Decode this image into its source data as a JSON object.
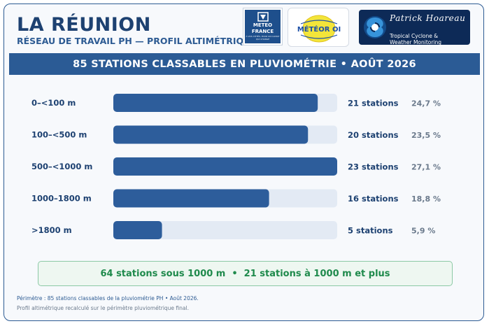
{
  "header": {
    "title": "LA RÉUNION",
    "subtitle": "RÉSEAU DE TRAVAIL PH — PROFIL ALTIMÉTRIQUE"
  },
  "logos": {
    "meteo_france": {
      "name_line1": "METEO",
      "name_line2": "FRANCE",
      "tagline": "À VOS CÔTÉS, POUR UN CLIMAT QUI CHANGE",
      "color": "#1e4f8c"
    },
    "meteor_oi": {
      "name": "MÉTÉOR OI",
      "color_yellow": "#f3e53a",
      "color_blue": "#1c4fa6"
    },
    "patrick_hoareau": {
      "name": "Patrick Hoareau",
      "tagline_line1": "Tropical Cyclone &",
      "tagline_line2": "Weather Monitoring",
      "color": "#0d2a57"
    }
  },
  "banner": {
    "text": "85 STATIONS CLASSABLES EN PLUVIOMÉTRIE • AOÛT 2026"
  },
  "chart_data": {
    "type": "bar",
    "orientation": "horizontal",
    "categories": [
      "0–<100 m",
      "100–<500 m",
      "500–<1000 m",
      "1000–1800 m",
      ">1800 m"
    ],
    "values": [
      21,
      20,
      23,
      16,
      5
    ],
    "count_labels": [
      "21 stations",
      "20 stations",
      "23 stations",
      "16 stations",
      "5 stations"
    ],
    "percent_labels": [
      "24,7 %",
      "23,5 %",
      "27,1 %",
      "18,8 %",
      "5,9 %"
    ],
    "xlim": [
      0,
      23
    ],
    "grid": false,
    "bar_color": "#2d5d9b",
    "track_color": "#e3eaf4"
  },
  "summary": {
    "left": "64 stations sous 1000 m",
    "separator": "•",
    "right": "21 stations à 1000 m et plus"
  },
  "footer": {
    "line1": "Périmètre : 85 stations classables de la pluviométrie PH • Août 2026.",
    "line2": "Profil altimétrique recalculé sur le périmètre pluviométrique final."
  }
}
